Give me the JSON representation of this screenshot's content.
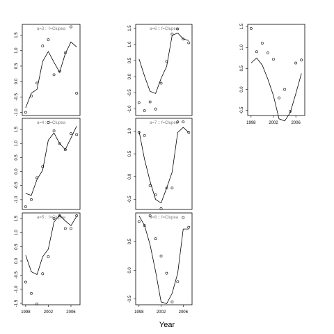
{
  "figure": {
    "xlabel": "Year",
    "x_ticks": [
      1998,
      2002,
      2006
    ],
    "x_tick_labels": [
      "1998",
      "2002",
      "2006"
    ]
  },
  "chart_data": [
    {
      "type": "scatter",
      "title": "a=3 :: f=Clupea",
      "x": [
        1998,
        1999,
        2000,
        2001,
        2002,
        2003,
        2004,
        2005,
        2006,
        2007
      ],
      "points": [
        -1.0,
        -0.47,
        -0.05,
        1.15,
        1.35,
        0.22,
        0.33,
        0.93,
        1.77,
        -0.38
      ],
      "fitted": [
        -0.85,
        -0.38,
        -0.25,
        0.65,
        0.97,
        0.62,
        0.3,
        0.9,
        1.28,
        1.12
      ],
      "ylim": [
        -1.1,
        1.85
      ],
      "yticks": [
        -1.0,
        -0.5,
        0.0,
        0.5,
        1.0,
        1.5
      ],
      "ytick_labels": [
        "-1.0",
        "-0.5",
        "0.0",
        "0.5",
        "1.0",
        "1.5"
      ],
      "show_x_axis": false
    },
    {
      "type": "scatter",
      "title": "a=6 :: f=Clupea",
      "x": [
        1998,
        1999,
        2000,
        2001,
        2002,
        2003,
        2004,
        2005,
        2006,
        2007
      ],
      "points": [
        -0.8,
        -1.05,
        -0.78,
        -1.0,
        -0.2,
        0.47,
        1.32,
        1.48,
        1.17,
        1.05
      ],
      "fitted": [
        0.55,
        0.02,
        -0.45,
        -0.52,
        -0.05,
        0.32,
        1.28,
        1.35,
        1.17,
        1.12
      ],
      "ylim": [
        -1.2,
        1.62
      ],
      "yticks": [
        -1.0,
        -0.5,
        0.0,
        0.5,
        1.0,
        1.5
      ],
      "ytick_labels": [
        "-1.0",
        "-0.5",
        "0.0",
        "0.5",
        "1.0",
        "1.5"
      ],
      "show_x_axis": false
    },
    {
      "type": "scatter",
      "title": "",
      "x": [
        1998,
        1999,
        2000,
        2001,
        2002,
        2003,
        2004,
        2005,
        2006,
        2007
      ],
      "points": [
        1.45,
        0.9,
        1.1,
        0.87,
        0.72,
        -0.2,
        0.0,
        -0.52,
        0.63,
        0.7
      ],
      "fitted": [
        0.63,
        0.75,
        0.58,
        0.25,
        -0.15,
        -0.7,
        -0.75,
        -0.55,
        -0.1,
        0.38
      ],
      "ylim": [
        -0.62,
        1.55
      ],
      "yticks": [
        -0.5,
        0.0,
        0.5,
        1.0,
        1.5
      ],
      "ytick_labels": [
        "-0.5",
        "0.0",
        "0.5",
        "1.0",
        "1.5"
      ],
      "show_x_axis": true
    },
    {
      "type": "scatter",
      "title": "a=4 :: f=Clupea",
      "x": [
        1998,
        1999,
        2000,
        2001,
        2002,
        2003,
        2004,
        2005,
        2006,
        2007
      ],
      "points": [
        -1.25,
        -1.0,
        -0.22,
        0.18,
        1.75,
        1.45,
        1.0,
        0.78,
        1.35,
        1.32
      ],
      "fitted": [
        -0.78,
        -0.85,
        -0.28,
        0.05,
        1.12,
        1.38,
        1.0,
        0.78,
        1.2,
        1.62
      ],
      "ylim": [
        -1.35,
        1.9
      ],
      "yticks": [
        -1.0,
        -0.5,
        0.0,
        0.5,
        1.0,
        1.5
      ],
      "ytick_labels": [
        "-1.0",
        "-0.5",
        "0.0",
        "0.5",
        "1.0",
        "1.5"
      ],
      "show_x_axis": false
    },
    {
      "type": "scatter",
      "title": "a=7 :: f=Clupea",
      "x": [
        1998,
        1999,
        2000,
        2001,
        2002,
        2003,
        2004,
        2005,
        2006,
        2007
      ],
      "points": [
        0.97,
        0.9,
        -0.2,
        -0.4,
        -0.7,
        -0.25,
        -0.25,
        1.2,
        1.2,
        0.97
      ],
      "fitted": [
        1.0,
        0.38,
        -0.1,
        -0.5,
        -0.58,
        -0.25,
        0.1,
        0.97,
        1.08,
        0.97
      ],
      "ylim": [
        -0.72,
        1.28
      ],
      "yticks": [
        -0.5,
        0.0,
        0.5,
        1.0
      ],
      "ytick_labels": [
        "-0.5",
        "0.0",
        "0.5",
        "1.0"
      ],
      "show_x_axis": false
    },
    {
      "type": "scatter",
      "title": "a=5 :: f=Clupea",
      "x": [
        1998,
        1999,
        2000,
        2001,
        2002,
        2003,
        2004,
        2005,
        2006,
        2007
      ],
      "points": [
        -0.75,
        -1.15,
        -1.52,
        -0.45,
        0.15,
        1.5,
        1.6,
        1.15,
        1.15,
        1.6
      ],
      "fitted": [
        0.2,
        -0.38,
        -0.48,
        0.15,
        0.42,
        1.38,
        1.62,
        1.42,
        1.25,
        1.58
      ],
      "ylim": [
        -1.55,
        1.7
      ],
      "yticks": [
        -1.5,
        -1.0,
        -0.5,
        0.0,
        0.5,
        1.0,
        1.5
      ],
      "ytick_labels": [
        "-1.5",
        "-1.0",
        "-0.5",
        "0.0",
        "0.5",
        "1.0",
        "1.5"
      ],
      "show_x_axis": true
    },
    {
      "type": "scatter",
      "title": "a=8 :: f=Clupea",
      "x": [
        1998,
        1999,
        2000,
        2001,
        2002,
        2003,
        2004,
        2005,
        2006,
        2007
      ],
      "points": [
        0.85,
        0.78,
        0.95,
        0.55,
        0.25,
        -0.05,
        -0.55,
        -0.2,
        0.92,
        0.75
      ],
      "fitted": [
        0.95,
        0.78,
        0.45,
        -0.02,
        -0.55,
        -0.58,
        -0.4,
        -0.05,
        0.72,
        0.72
      ],
      "ylim": [
        -0.6,
        1.0
      ],
      "yticks": [
        -0.5,
        0.0,
        0.5
      ],
      "ytick_labels": [
        "-0.5",
        "0.0",
        "0.5"
      ],
      "show_x_axis": true
    }
  ]
}
